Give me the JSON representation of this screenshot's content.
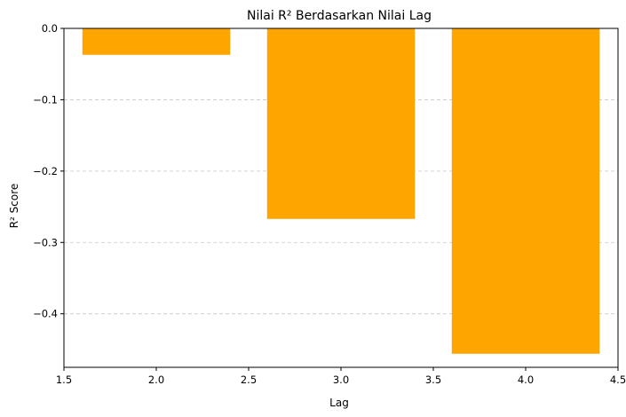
{
  "chart_data": {
    "type": "bar",
    "title": "Nilai R² Berdasarkan Nilai Lag",
    "xlabel": "Lag",
    "ylabel": "R² Score",
    "x": [
      2,
      3,
      4
    ],
    "values": [
      -0.037,
      -0.267,
      -0.456
    ],
    "bar_width": 0.8,
    "xlim": [
      1.5,
      4.5
    ],
    "ylim": [
      -0.475,
      0.0
    ],
    "xticks": [
      "1.5",
      "2.0",
      "2.5",
      "3.0",
      "3.5",
      "4.0",
      "4.5"
    ],
    "yticks": [
      "0.0",
      "−0.1",
      "−0.2",
      "−0.3",
      "−0.4"
    ],
    "grid": "y-dashed",
    "bar_color": "#FFA500",
    "grid_color": "#c8c8c8"
  }
}
